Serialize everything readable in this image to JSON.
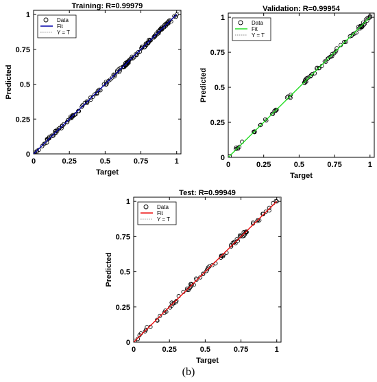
{
  "caption": "(b)",
  "chart_data": [
    {
      "type": "scatter",
      "title": "Training: R=0.99979",
      "xlabel": "Target",
      "ylabel": "Predicted",
      "xlim": [
        0,
        1.03
      ],
      "ylim": [
        0,
        1.03
      ],
      "xticks": [
        "0",
        "0.25",
        "0.5",
        "0.75",
        "1"
      ],
      "yticks": [
        "0",
        "0.25",
        "0.5",
        "0.75",
        "1"
      ],
      "legend": {
        "placement": "top-left",
        "entries": [
          "Data",
          "Fit",
          "Y = T"
        ]
      },
      "fit_color": "#0000aa",
      "fit": {
        "slope": 1.0,
        "intercept": 0.0
      },
      "point_count": 160,
      "noise": 0.012
    },
    {
      "type": "scatter",
      "title": "Validation: R=0.99954",
      "xlabel": "Target",
      "ylabel": "Predicted",
      "xlim": [
        0,
        1.03
      ],
      "ylim": [
        0,
        1.03
      ],
      "xticks": [
        "0",
        "0.25",
        "0.5",
        "0.75",
        "1"
      ],
      "yticks": [
        "0",
        "0.25",
        "0.5",
        "0.75",
        "1"
      ],
      "legend": {
        "placement": "top-left",
        "entries": [
          "Data",
          "Fit",
          "Y = T"
        ]
      },
      "fit_color": "#22dd22",
      "fit": {
        "slope": 1.0,
        "intercept": 0.0
      },
      "point_count": 80,
      "noise": 0.014
    },
    {
      "type": "scatter",
      "title": "Test: R=0.99949",
      "xlabel": "Target",
      "ylabel": "Predicted",
      "xlim": [
        0,
        1.03
      ],
      "ylim": [
        0,
        1.03
      ],
      "xticks": [
        "0",
        "0.25",
        "0.5",
        "0.75",
        "1"
      ],
      "yticks": [
        "0",
        "0.25",
        "0.5",
        "0.75",
        "1"
      ],
      "legend": {
        "placement": "top-left",
        "entries": [
          "Data",
          "Fit",
          "Y = T"
        ]
      },
      "fit_color": "#ee1111",
      "fit": {
        "slope": 1.0,
        "intercept": 0.0
      },
      "point_count": 80,
      "noise": 0.016
    }
  ]
}
